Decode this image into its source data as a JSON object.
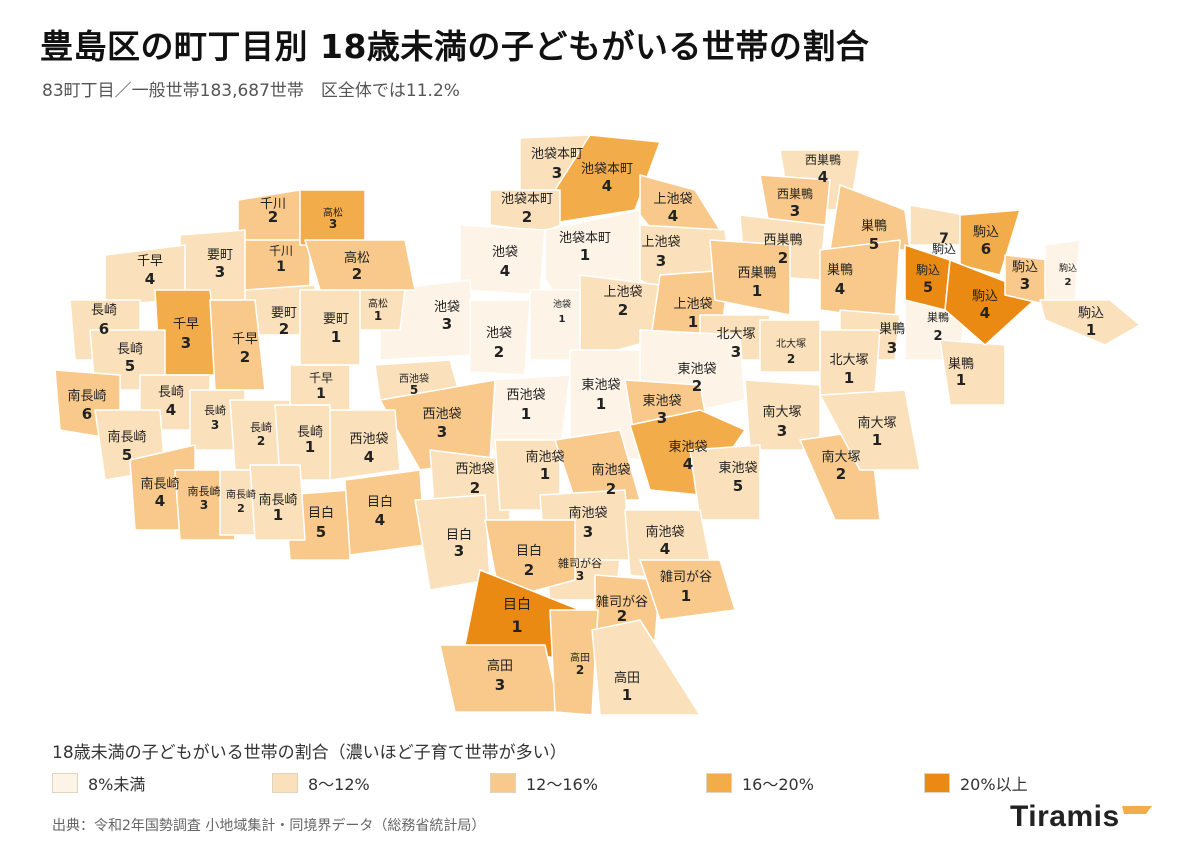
{
  "header": {
    "title": "豊島区の町丁目別 18歳未満の子どもがいる世帯の割合",
    "subtitle": "83町丁目／一般世帯183,687世帯　区全体では11.2%"
  },
  "legend": {
    "title": "18歳未満の子どもがいる世帯の割合（濃いほど子育て世帯が多い）",
    "items": [
      {
        "label": "8%未満",
        "color": "#fdf4e7"
      },
      {
        "label": "8〜12%",
        "color": "#fbe1bb"
      },
      {
        "label": "12〜16%",
        "color": "#f8c98a"
      },
      {
        "label": "16〜20%",
        "color": "#f3ac4a"
      },
      {
        "label": "20%以上",
        "color": "#ea8a12"
      }
    ]
  },
  "source": "出典：令和2年国勢調査 小地域集計・同境界データ（総務省統計局）",
  "brand": {
    "name": "Tiramis",
    "mark_color": "#f3ac4a"
  },
  "map": {
    "areas": [
      {
        "name": "池袋本町",
        "num": "3",
        "cls": 1
      },
      {
        "name": "池袋本町",
        "num": "4",
        "cls": 3
      },
      {
        "name": "池袋本町",
        "num": "2",
        "cls": 1
      },
      {
        "name": "池袋本町",
        "num": "1",
        "cls": 0
      },
      {
        "name": "上池袋",
        "num": "4",
        "cls": 2
      },
      {
        "name": "上池袋",
        "num": "3",
        "cls": 1
      },
      {
        "name": "上池袋",
        "num": "2",
        "cls": 1
      },
      {
        "name": "上池袋",
        "num": "1",
        "cls": 2
      },
      {
        "name": "池袋",
        "num": "4",
        "cls": 0
      },
      {
        "name": "池袋",
        "num": "3",
        "cls": 0
      },
      {
        "name": "池袋",
        "num": "2",
        "cls": 0
      },
      {
        "name": "池袋",
        "num": "1",
        "cls": 0
      },
      {
        "name": "西巣鴨",
        "num": "4",
        "cls": 1
      },
      {
        "name": "西巣鴨",
        "num": "3",
        "cls": 2
      },
      {
        "name": "西巣鴨",
        "num": "2",
        "cls": 1
      },
      {
        "name": "西巣鴨",
        "num": "1",
        "cls": 2
      },
      {
        "name": "巣鴨",
        "num": "5",
        "cls": 2
      },
      {
        "name": "巣鴨",
        "num": "4",
        "cls": 2
      },
      {
        "name": "巣鴨",
        "num": "3",
        "cls": 1
      },
      {
        "name": "巣鴨",
        "num": "2",
        "cls": 0
      },
      {
        "name": "巣鴨",
        "num": "1",
        "cls": 1
      },
      {
        "name": "駒込",
        "num": "7",
        "cls": 1
      },
      {
        "name": "駒込",
        "num": "6",
        "cls": 3
      },
      {
        "name": "駒込",
        "num": "5",
        "cls": 4
      },
      {
        "name": "駒込",
        "num": "4",
        "cls": 4
      },
      {
        "name": "駒込",
        "num": "3",
        "cls": 2
      },
      {
        "name": "駒込",
        "num": "2",
        "cls": 0
      },
      {
        "name": "駒込",
        "num": "1",
        "cls": 1
      },
      {
        "name": "北大塚",
        "num": "3",
        "cls": 1
      },
      {
        "name": "北大塚",
        "num": "2",
        "cls": 1
      },
      {
        "name": "北大塚",
        "num": "1",
        "cls": 1
      },
      {
        "name": "南大塚",
        "num": "3",
        "cls": 1
      },
      {
        "name": "南大塚",
        "num": "2",
        "cls": 2
      },
      {
        "name": "南大塚",
        "num": "1",
        "cls": 1
      },
      {
        "name": "東池袋",
        "num": "2",
        "cls": 0
      },
      {
        "name": "東池袋",
        "num": "1",
        "cls": 0
      },
      {
        "name": "東池袋",
        "num": "3",
        "cls": 2
      },
      {
        "name": "東池袋",
        "num": "4",
        "cls": 3
      },
      {
        "name": "東池袋",
        "num": "5",
        "cls": 1
      },
      {
        "name": "西池袋",
        "num": "5",
        "cls": 1
      },
      {
        "name": "西池袋",
        "num": "1",
        "cls": 0
      },
      {
        "name": "西池袋",
        "num": "3",
        "cls": 2
      },
      {
        "name": "西池袋",
        "num": "4",
        "cls": 1
      },
      {
        "name": "西池袋",
        "num": "2",
        "cls": 1
      },
      {
        "name": "南池袋",
        "num": "1",
        "cls": 1
      },
      {
        "name": "南池袋",
        "num": "2",
        "cls": 2
      },
      {
        "name": "南池袋",
        "num": "3",
        "cls": 1
      },
      {
        "name": "南池袋",
        "num": "4",
        "cls": 1
      },
      {
        "name": "雑司が谷",
        "num": "3",
        "cls": 1
      },
      {
        "name": "雑司が谷",
        "num": "2",
        "cls": 2
      },
      {
        "name": "雑司が谷",
        "num": "1",
        "cls": 2
      },
      {
        "name": "目白",
        "num": "5",
        "cls": 2
      },
      {
        "name": "目白",
        "num": "4",
        "cls": 2
      },
      {
        "name": "目白",
        "num": "3",
        "cls": 1
      },
      {
        "name": "目白",
        "num": "2",
        "cls": 2
      },
      {
        "name": "目白",
        "num": "1",
        "cls": 4
      },
      {
        "name": "高田",
        "num": "3",
        "cls": 2
      },
      {
        "name": "高田",
        "num": "2",
        "cls": 2
      },
      {
        "name": "高田",
        "num": "1",
        "cls": 1
      },
      {
        "name": "千川",
        "num": "2",
        "cls": 2
      },
      {
        "name": "千川",
        "num": "1",
        "cls": 2
      },
      {
        "name": "高松",
        "num": "3",
        "cls": 3
      },
      {
        "name": "高松",
        "num": "2",
        "cls": 2
      },
      {
        "name": "高松",
        "num": "1",
        "cls": 1
      },
      {
        "name": "要町",
        "num": "3",
        "cls": 1
      },
      {
        "name": "要町",
        "num": "2",
        "cls": 1
      },
      {
        "name": "要町",
        "num": "1",
        "cls": 1
      },
      {
        "name": "千早",
        "num": "4",
        "cls": 1
      },
      {
        "name": "千早",
        "num": "3",
        "cls": 3
      },
      {
        "name": "千早",
        "num": "2",
        "cls": 2
      },
      {
        "name": "千早",
        "num": "1",
        "cls": 1
      },
      {
        "name": "長崎",
        "num": "6",
        "cls": 1
      },
      {
        "name": "長崎",
        "num": "5",
        "cls": 1
      },
      {
        "name": "長崎",
        "num": "4",
        "cls": 1
      },
      {
        "name": "長崎",
        "num": "3",
        "cls": 1
      },
      {
        "name": "長崎",
        "num": "2",
        "cls": 1
      },
      {
        "name": "長崎",
        "num": "1",
        "cls": 1
      },
      {
        "name": "南長崎",
        "num": "6",
        "cls": 2
      },
      {
        "name": "南長崎",
        "num": "5",
        "cls": 1
      },
      {
        "name": "南長崎",
        "num": "4",
        "cls": 2
      },
      {
        "name": "南長崎",
        "num": "3",
        "cls": 2
      },
      {
        "name": "南長崎",
        "num": "2",
        "cls": 1
      },
      {
        "name": "南長崎",
        "num": "1",
        "cls": 1
      }
    ]
  }
}
